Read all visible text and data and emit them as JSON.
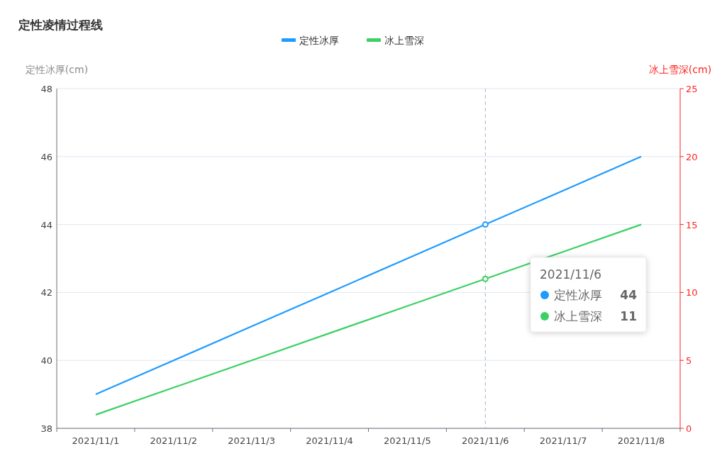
{
  "chart_data": {
    "type": "line",
    "title": "定性凌情过程线",
    "ylabel": "定性冰厚(cm)",
    "y2label": "冰上雪深(cm)",
    "categories": [
      "2021/11/1",
      "2021/11/2",
      "2021/11/3",
      "2021/11/4",
      "2021/11/5",
      "2021/11/6",
      "2021/11/7",
      "2021/11/8"
    ],
    "series": [
      {
        "name": "定性冰厚",
        "color": "#1e9bff",
        "values": [
          39,
          40,
          41,
          42,
          43,
          44,
          45,
          46
        ]
      },
      {
        "name": "冰上雪深",
        "color": "#3cd064",
        "axis": "y2",
        "values": [
          1,
          3,
          5,
          7,
          9,
          11,
          13,
          15
        ]
      }
    ],
    "ylim": [
      38,
      48
    ],
    "yticks": [
      38,
      40,
      42,
      44,
      46,
      48
    ],
    "y2lim": [
      0,
      25
    ],
    "y2ticks": [
      0,
      5,
      10,
      15,
      20,
      25
    ],
    "annotations": [
      "2021/11/6",
      "定性冰厚",
      "44",
      "冰上雪深",
      "11"
    ],
    "grid": "y",
    "legend": "top",
    "marker": "none",
    "line_style": "solid",
    "ref_lines": [
      {
        "axis": "x",
        "value": "2021/11/6",
        "color": "#a9b4c8",
        "line_style": "dashed"
      }
    ]
  }
}
